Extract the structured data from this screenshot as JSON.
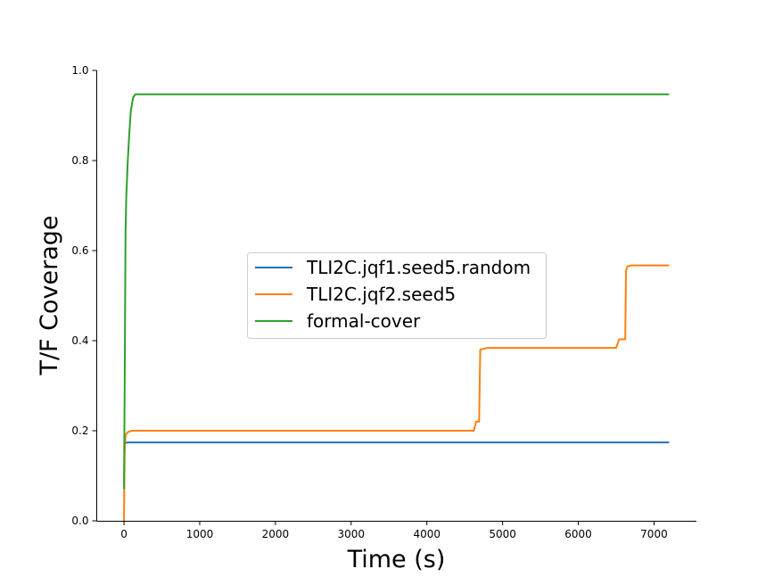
{
  "chart_data": {
    "type": "line",
    "title": "",
    "xlabel": "Time (s)",
    "ylabel": "T/F Coverage",
    "xlim": [
      -360,
      7560
    ],
    "ylim": [
      0,
      1
    ],
    "x_ticks": [
      0,
      1000,
      2000,
      3000,
      4000,
      5000,
      6000,
      7000
    ],
    "y_ticks": [
      0.0,
      0.2,
      0.4,
      0.6,
      0.8,
      1.0
    ],
    "x_tick_labels": [
      "0",
      "1000",
      "2000",
      "3000",
      "4000",
      "5000",
      "6000",
      "7000"
    ],
    "y_tick_labels": [
      "0.0",
      "0.2",
      "0.4",
      "0.6",
      "0.8",
      "1.0"
    ],
    "grid": false,
    "legend_position": "center-right",
    "series": [
      {
        "name": "TLI2C.jqf1.seed5.random",
        "color": "#1f77b4",
        "x": [
          0,
          5,
          20,
          50,
          7200
        ],
        "y": [
          0.17,
          0.17,
          0.173,
          0.174,
          0.174
        ]
      },
      {
        "name": "TLI2C.jqf2.seed5",
        "color": "#ff7f0e",
        "x": [
          0,
          3,
          8,
          20,
          50,
          100,
          4620,
          4650,
          4690,
          4700,
          4705,
          4750,
          4800,
          4850,
          6500,
          6540,
          6600,
          6620,
          6630,
          6650,
          6700,
          6800,
          7200
        ],
        "y": [
          0.0,
          0.06,
          0.15,
          0.19,
          0.197,
          0.2,
          0.2,
          0.22,
          0.22,
          0.33,
          0.38,
          0.382,
          0.384,
          0.384,
          0.384,
          0.403,
          0.403,
          0.403,
          0.555,
          0.565,
          0.567,
          0.567,
          0.567
        ]
      },
      {
        "name": "formal-cover",
        "color": "#2ca02c",
        "x": [
          0,
          5,
          10,
          20,
          30,
          50,
          70,
          90,
          100,
          110,
          120,
          150,
          7200
        ],
        "y": [
          0.07,
          0.2,
          0.33,
          0.64,
          0.72,
          0.8,
          0.86,
          0.91,
          0.92,
          0.93,
          0.94,
          0.947,
          0.947
        ]
      }
    ]
  }
}
